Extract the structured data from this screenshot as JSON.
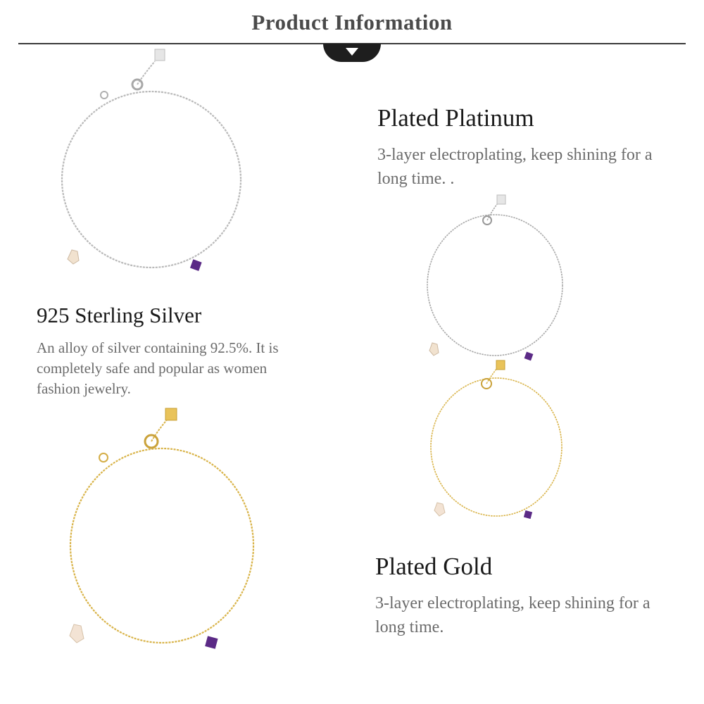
{
  "header": {
    "title": "Product Information",
    "arrow_icon": "chevron-down-icon"
  },
  "colors": {
    "silver_chain": "#b8b8b8",
    "gold_chain": "#d9b44a",
    "amethyst": "#5b2a86",
    "pearl": "#f3e3d4"
  },
  "sections": {
    "silver": {
      "title": "925 Sterling Silver",
      "description": "An alloy of silver containing 92.5%. It is completely safe and popular as women fashion jewelry."
    },
    "platinum": {
      "title": "Plated Platinum",
      "description": "3-layer electroplating, keep shining for a long time. ."
    },
    "gold": {
      "title": "Plated Gold",
      "description": "3-layer electroplating, keep shining for a long time."
    }
  }
}
